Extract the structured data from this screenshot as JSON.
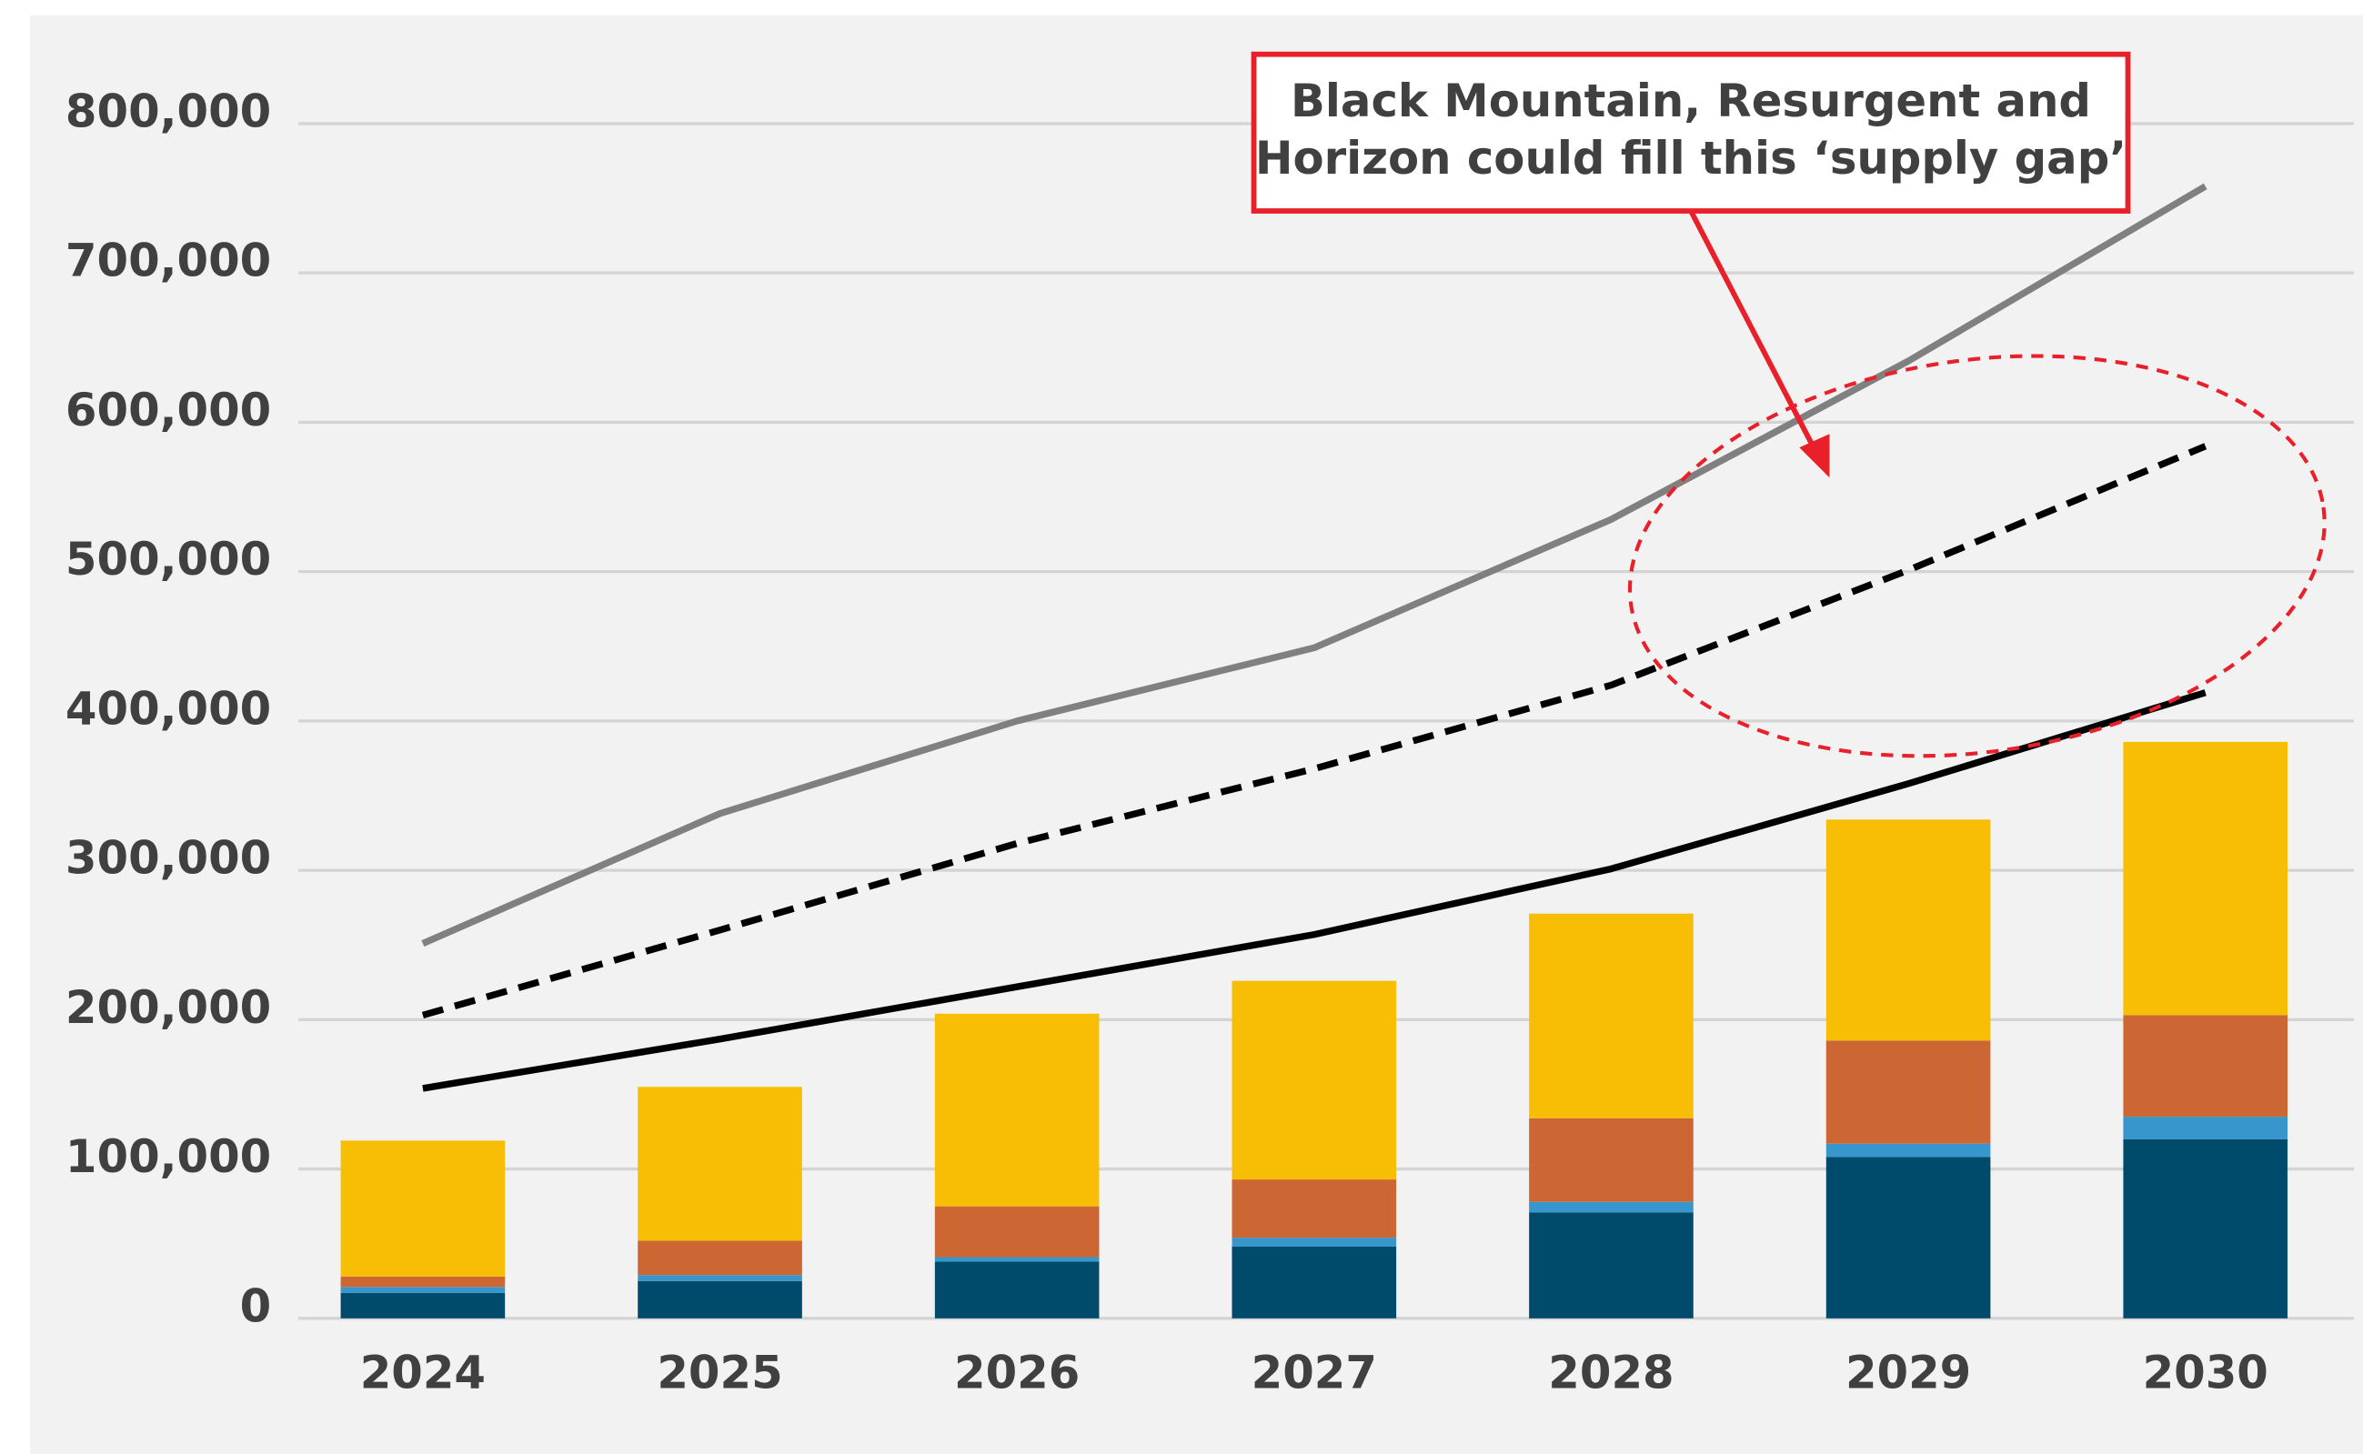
{
  "chart_data": {
    "type": "bar",
    "stacked": true,
    "categories": [
      "2024",
      "2025",
      "2026",
      "2027",
      "2028",
      "2029",
      "2030"
    ],
    "series": [
      {
        "color": "#004a6b",
        "values": [
          17000,
          25000,
          38000,
          48000,
          71000,
          108000,
          120000
        ]
      },
      {
        "color": "#3797cc",
        "values": [
          4000,
          4000,
          3000,
          6000,
          7000,
          9000,
          15000
        ]
      },
      {
        "color": "#cc6633",
        "values": [
          7000,
          23000,
          34000,
          39000,
          56000,
          69000,
          68000
        ]
      },
      {
        "color": "#f7be05",
        "values": [
          91000,
          103000,
          129000,
          133000,
          137000,
          148000,
          183000
        ]
      },
      {
        "type": "line",
        "color": "#808080",
        "dash": false,
        "values": [
          251000,
          338000,
          400000,
          449000,
          535000,
          641000,
          758000
        ]
      },
      {
        "type": "line",
        "color": "#000000",
        "dash": true,
        "values": [
          203000,
          260000,
          318000,
          368000,
          424000,
          501000,
          584000
        ]
      },
      {
        "type": "line",
        "color": "#000000",
        "dash": false,
        "values": [
          154000,
          187000,
          222000,
          257000,
          301000,
          358000,
          419000
        ]
      }
    ],
    "ylim": [
      0,
      800000
    ],
    "yticks": [
      0,
      {
        "value": 100000,
        "label": "100,000"
      },
      {
        "value": 200000,
        "label": "200,000"
      },
      {
        "value": 300000,
        "label": "300,000"
      },
      {
        "value": 400000,
        "label": "400,000"
      },
      {
        "value": 500000,
        "label": "500,000"
      },
      {
        "value": 600000,
        "label": "600,000"
      },
      {
        "value": 700000,
        "label": "700,000"
      },
      {
        "value": 800000,
        "label": "800,000"
      }
    ],
    "grid": true,
    "annotation": [
      "Black Mountain, Resurgent and",
      "Horizon could fill this ‘supply gap’"
    ]
  }
}
